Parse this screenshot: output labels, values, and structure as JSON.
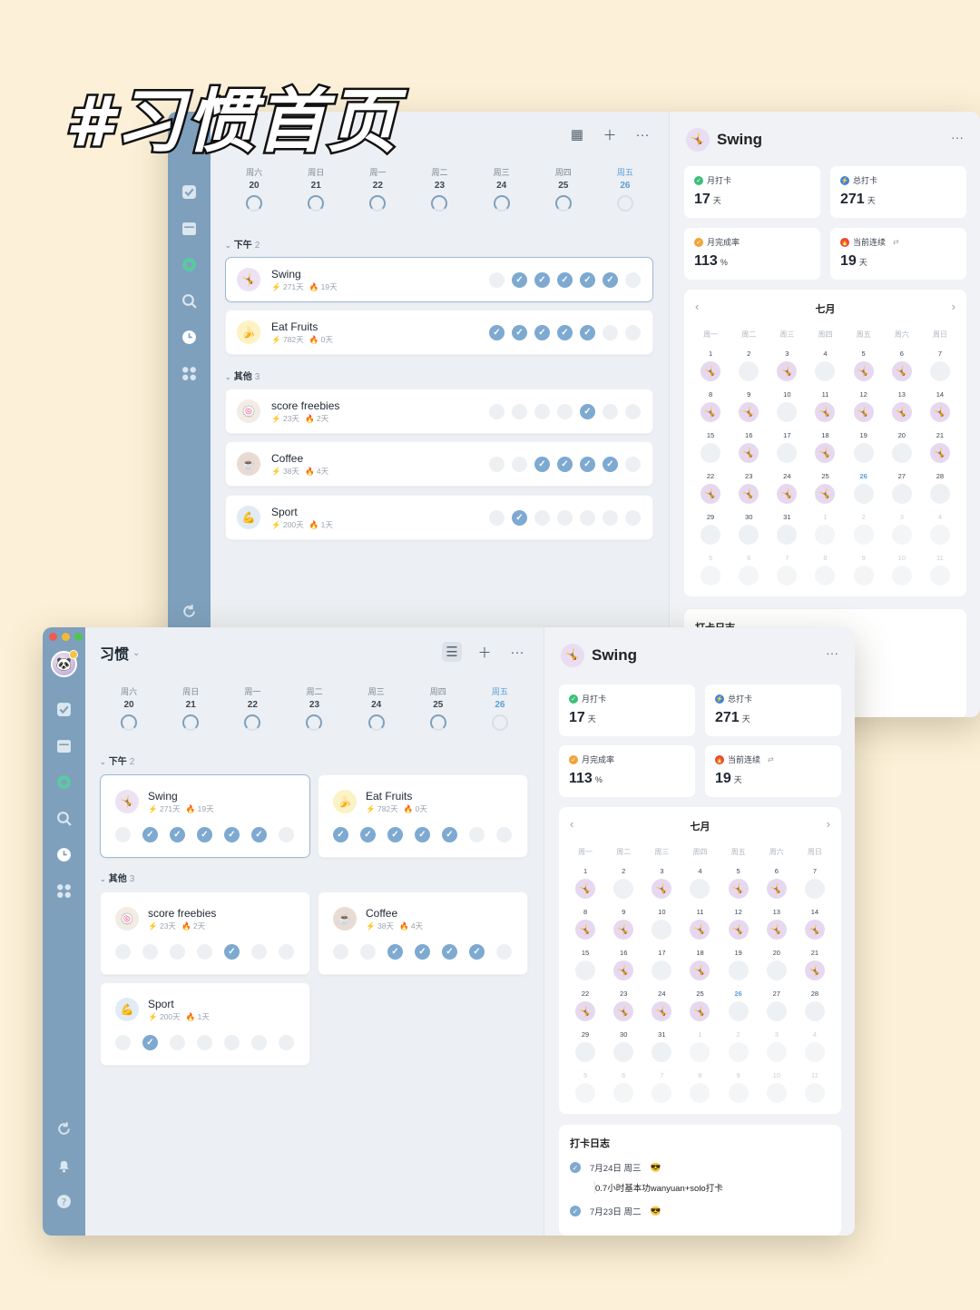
{
  "overlay_title": "#习惯首页",
  "app": {
    "title": "习惯"
  },
  "toolbar_back_icons": [
    "grid-icon",
    "plus-icon",
    "more-icon"
  ],
  "week": [
    {
      "wd": "周六",
      "dn": "20"
    },
    {
      "wd": "周日",
      "dn": "21"
    },
    {
      "wd": "周一",
      "dn": "22"
    },
    {
      "wd": "周二",
      "dn": "23"
    },
    {
      "wd": "周三",
      "dn": "24"
    },
    {
      "wd": "周四",
      "dn": "25"
    },
    {
      "wd": "周五",
      "dn": "26"
    }
  ],
  "groups": {
    "afternoon": {
      "label": "下午",
      "count": "2"
    },
    "other": {
      "label": "其他",
      "count": "3"
    }
  },
  "habits": [
    {
      "name": "Swing",
      "total": "271天",
      "streak": "19天",
      "icon": "🤸",
      "checks": [
        0,
        1,
        1,
        1,
        1,
        1,
        0
      ]
    },
    {
      "name": "Eat Fruits",
      "total": "782天",
      "streak": "0天",
      "icon": "🍌",
      "checks": [
        1,
        1,
        1,
        1,
        1,
        0,
        0
      ]
    },
    {
      "name": "score freebies",
      "total": "23天",
      "streak": "2天",
      "icon": "🍥",
      "checks": [
        0,
        0,
        0,
        0,
        1,
        0,
        0
      ]
    },
    {
      "name": "Coffee",
      "total": "38天",
      "streak": "4天",
      "icon": "☕",
      "checks": [
        0,
        0,
        1,
        1,
        1,
        1,
        0
      ]
    },
    {
      "name": "Sport",
      "total": "200天",
      "streak": "1天",
      "icon": "💪",
      "checks": [
        0,
        1,
        0,
        0,
        0,
        0,
        0
      ]
    }
  ],
  "detail": {
    "name": "Swing",
    "stats": {
      "month_checkin": {
        "label": "月打卡",
        "value": "17",
        "unit": "天"
      },
      "total_checkin": {
        "label": "总打卡",
        "value": "271",
        "unit": "天"
      },
      "month_rate": {
        "label": "月完成率",
        "value": "113",
        "unit": "%"
      },
      "current_streak": {
        "label": "当前连续",
        "value": "19",
        "unit": "天",
        "extra": "⇄"
      }
    },
    "calendar": {
      "month": "七月",
      "weekdays": [
        "周一",
        "周二",
        "周三",
        "周四",
        "周五",
        "周六",
        "周日"
      ],
      "today": "26",
      "days": [
        {
          "n": "1",
          "on": 1
        },
        {
          "n": "2",
          "on": 0
        },
        {
          "n": "3",
          "on": 1
        },
        {
          "n": "4",
          "on": 0
        },
        {
          "n": "5",
          "on": 1
        },
        {
          "n": "6",
          "on": 1
        },
        {
          "n": "7",
          "on": 0
        },
        {
          "n": "8",
          "on": 1
        },
        {
          "n": "9",
          "on": 1
        },
        {
          "n": "10",
          "on": 0
        },
        {
          "n": "11",
          "on": 1
        },
        {
          "n": "12",
          "on": 1
        },
        {
          "n": "13",
          "on": 1
        },
        {
          "n": "14",
          "on": 1
        },
        {
          "n": "15",
          "on": 0
        },
        {
          "n": "16",
          "on": 1
        },
        {
          "n": "17",
          "on": 0
        },
        {
          "n": "18",
          "on": 1
        },
        {
          "n": "19",
          "on": 0
        },
        {
          "n": "20",
          "on": 0
        },
        {
          "n": "21",
          "on": 1
        },
        {
          "n": "22",
          "on": 1
        },
        {
          "n": "23",
          "on": 1
        },
        {
          "n": "24",
          "on": 1
        },
        {
          "n": "25",
          "on": 1
        },
        {
          "n": "26",
          "on": 0
        },
        {
          "n": "27",
          "on": 0
        },
        {
          "n": "28",
          "on": 0
        },
        {
          "n": "29",
          "on": 0
        },
        {
          "n": "30",
          "on": 0
        },
        {
          "n": "31",
          "on": 0
        },
        {
          "n": "1",
          "on": 0,
          "dim": 1
        },
        {
          "n": "2",
          "on": 0,
          "dim": 1
        },
        {
          "n": "3",
          "on": 0,
          "dim": 1
        },
        {
          "n": "4",
          "on": 0,
          "dim": 1
        },
        {
          "n": "5",
          "on": 0,
          "dim": 1
        },
        {
          "n": "6",
          "on": 0,
          "dim": 1
        },
        {
          "n": "7",
          "on": 0,
          "dim": 1
        },
        {
          "n": "8",
          "on": 0,
          "dim": 1
        },
        {
          "n": "9",
          "on": 0,
          "dim": 1
        },
        {
          "n": "10",
          "on": 0,
          "dim": 1
        },
        {
          "n": "11",
          "on": 0,
          "dim": 1
        }
      ]
    },
    "log": {
      "title": "打卡日志",
      "entries": [
        {
          "date": "7月24日 周三",
          "emoji": "😎",
          "note": "0.7小时基本功wanyuan+solo打卡"
        },
        {
          "date": "7月23日 周二",
          "emoji": "😎",
          "note": ""
        }
      ],
      "partial_back": "打卡"
    }
  },
  "colors": {
    "accent": "#7ea9d0",
    "rail": "#7ea0bd",
    "today": "#5b9fd8",
    "bg": "#fcf1d8"
  }
}
